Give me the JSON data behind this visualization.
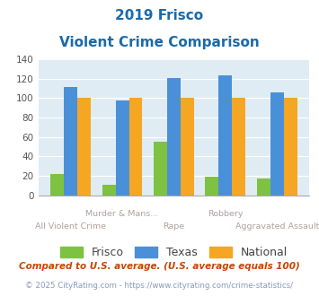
{
  "title_line1": "2019 Frisco",
  "title_line2": "Violent Crime Comparison",
  "categories": [
    "All Violent Crime",
    "Murder & Mans...",
    "Rape",
    "Robbery",
    "Aggravated Assault"
  ],
  "frisco": [
    22,
    11,
    55,
    19,
    17
  ],
  "texas": [
    111,
    98,
    121,
    123,
    106
  ],
  "national": [
    100,
    100,
    100,
    100,
    100
  ],
  "frisco_color": "#7dc241",
  "texas_color": "#4a90d9",
  "national_color": "#f5a623",
  "ylim": [
    0,
    140
  ],
  "yticks": [
    0,
    20,
    40,
    60,
    80,
    100,
    120,
    140
  ],
  "footnote1": "Compared to U.S. average. (U.S. average equals 100)",
  "footnote2": "© 2025 CityRating.com - https://www.cityrating.com/crime-statistics/",
  "bg_color": "#ffffff",
  "plot_bg": "#e0ecf4",
  "title_color": "#1a6aab",
  "label_color": "#b0a0a0",
  "footnote1_color": "#cc4400",
  "footnote2_color": "#8899bb"
}
